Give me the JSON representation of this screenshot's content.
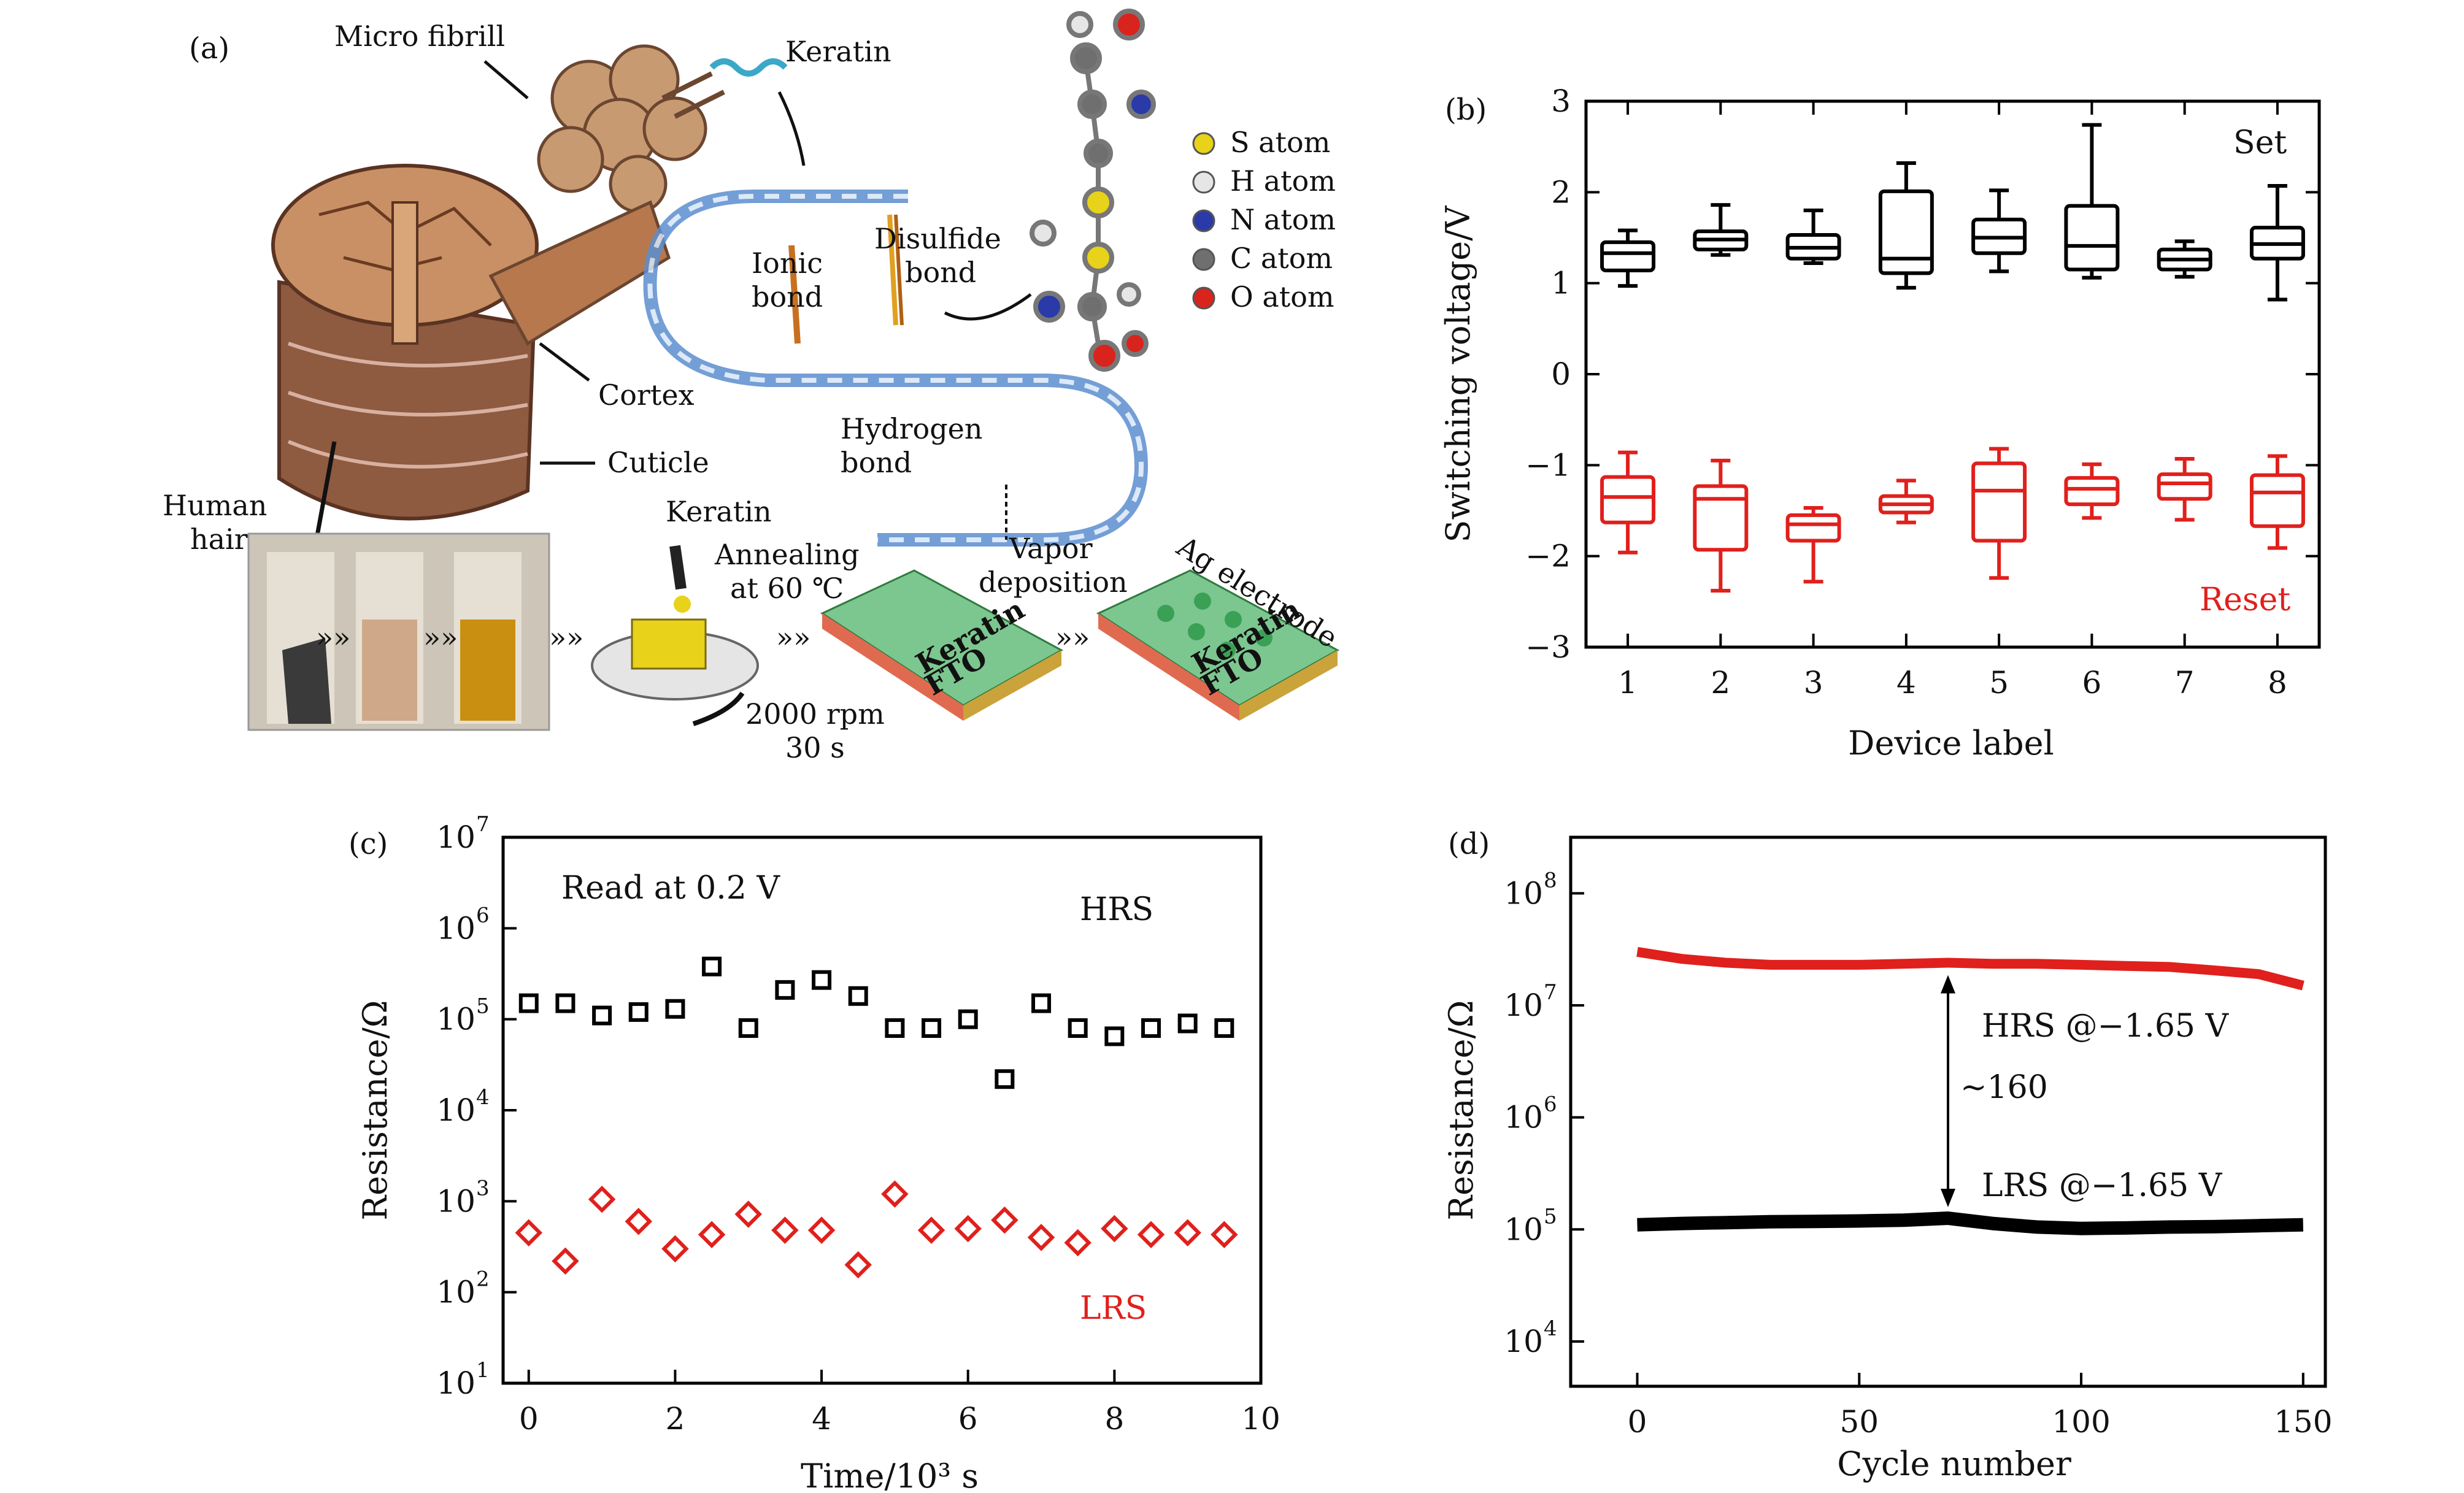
{
  "panels": {
    "a": "(a)",
    "b": "(b)",
    "c": "(c)",
    "d": "(d)"
  },
  "schematic": {
    "labels": {
      "micro_fibril": "Micro fibrill",
      "keratin_top": "Keratin",
      "cortex": "Cortex",
      "cuticle": "Cuticle",
      "human": "Human",
      "hair": "hair",
      "ionic1": "Ionic",
      "ionic2": "bond",
      "disulfide1": "Disulfide",
      "disulfide2": "bond",
      "hydrogen1": "Hydrogen",
      "hydrogen2": "bond",
      "keratin_drop": "Keratin",
      "annealing1": "Annealing",
      "annealing2": "at 60 ℃",
      "vapor1": "Vapor",
      "vapor2": "deposition",
      "ag": "Ag electrode",
      "rpm": "2000 rpm",
      "sec": "30 s",
      "keratin_film": "Keratin",
      "fto": "FTO",
      "keratin_film2": "Keratin",
      "fto2": "FTO"
    },
    "legend": [
      {
        "label": "S atom",
        "color": "#e8d21a"
      },
      {
        "label": "H atom",
        "color": "#e6e6e6"
      },
      {
        "label": "N atom",
        "color": "#2a3aa8"
      },
      {
        "label": "C atom",
        "color": "#6f6f6f"
      },
      {
        "label": "O atom",
        "color": "#d8241c"
      }
    ]
  },
  "chart_data": [
    {
      "id": "b",
      "type": "box",
      "xlabel": "Device label",
      "ylabel": "Switching voltage/V",
      "xlim": [
        0.55,
        8.45
      ],
      "ylim": [
        -3,
        3
      ],
      "categories": [
        "1",
        "2",
        "3",
        "4",
        "5",
        "6",
        "7",
        "8"
      ],
      "yticks": [
        "3",
        "2",
        "1",
        "0",
        "−1",
        "−2",
        "−3"
      ],
      "series": [
        {
          "name": "Set",
          "color": "#000000",
          "boxes": [
            {
              "min": 0.97,
              "q1": 1.14,
              "med": 1.33,
              "q3": 1.45,
              "max": 1.58
            },
            {
              "min": 1.31,
              "q1": 1.37,
              "med": 1.48,
              "q3": 1.57,
              "max": 1.86
            },
            {
              "min": 1.22,
              "q1": 1.27,
              "med": 1.39,
              "q3": 1.53,
              "max": 1.8
            },
            {
              "min": 0.95,
              "q1": 1.11,
              "med": 1.27,
              "q3": 2.01,
              "max": 2.32
            },
            {
              "min": 1.13,
              "q1": 1.33,
              "med": 1.5,
              "q3": 1.7,
              "max": 2.02
            },
            {
              "min": 1.06,
              "q1": 1.15,
              "med": 1.41,
              "q3": 1.85,
              "max": 2.74
            },
            {
              "min": 1.07,
              "q1": 1.15,
              "med": 1.26,
              "q3": 1.37,
              "max": 1.46
            },
            {
              "min": 0.82,
              "q1": 1.27,
              "med": 1.43,
              "q3": 1.61,
              "max": 2.07
            }
          ]
        },
        {
          "name": "Reset",
          "color": "#e0201c",
          "boxes": [
            {
              "min": -1.96,
              "q1": -1.63,
              "med": -1.35,
              "q3": -1.13,
              "max": -0.86
            },
            {
              "min": -2.38,
              "q1": -1.93,
              "med": -1.37,
              "q3": -1.23,
              "max": -0.95
            },
            {
              "min": -2.28,
              "q1": -1.83,
              "med": -1.65,
              "q3": -1.55,
              "max": -1.47
            },
            {
              "min": -1.63,
              "q1": -1.52,
              "med": -1.43,
              "q3": -1.34,
              "max": -1.17
            },
            {
              "min": -2.24,
              "q1": -1.83,
              "med": -1.28,
              "q3": -0.98,
              "max": -0.82
            },
            {
              "min": -1.58,
              "q1": -1.43,
              "med": -1.26,
              "q3": -1.14,
              "max": -0.99
            },
            {
              "min": -1.6,
              "q1": -1.37,
              "med": -1.2,
              "q3": -1.1,
              "max": -0.93
            },
            {
              "min": -1.91,
              "q1": -1.67,
              "med": -1.3,
              "q3": -1.11,
              "max": -0.9
            }
          ]
        }
      ]
    },
    {
      "id": "c",
      "type": "scatter",
      "xlabel": "Time/10³ s",
      "ylabel": "Resistance/Ω",
      "xlim": [
        -0.35,
        10
      ],
      "ylim": [
        1,
        7
      ],
      "yscale": "log",
      "xticks": [
        "0",
        "2",
        "4",
        "6",
        "8",
        "10"
      ],
      "yticks": [
        "10",
        "10",
        "10",
        "10",
        "10",
        "10",
        "10"
      ],
      "yexp": [
        "7",
        "6",
        "5",
        "4",
        "3",
        "2",
        "1"
      ],
      "annotation": "Read at 0.2 V",
      "series": [
        {
          "name": "HRS",
          "color": "#000000",
          "marker": "square",
          "x": [
            0,
            0.5,
            1,
            1.5,
            2,
            2.5,
            3,
            3.5,
            4,
            4.5,
            5,
            5.5,
            6,
            6.5,
            7,
            7.5,
            8,
            8.5,
            9,
            9.5
          ],
          "y": [
            150000,
            150000,
            110000,
            120000,
            130000,
            380000,
            80000,
            210000,
            270000,
            180000,
            80000,
            80000,
            100000,
            22000,
            150000,
            80000,
            65000,
            80000,
            90000,
            80000
          ]
        },
        {
          "name": "LRS",
          "color": "#e0201c",
          "marker": "diamond",
          "x": [
            0,
            0.5,
            1,
            1.5,
            2,
            2.5,
            3,
            3.5,
            4,
            4.5,
            5,
            5.5,
            6,
            6.5,
            7,
            7.5,
            8,
            8.5,
            9,
            9.5
          ],
          "y": [
            450,
            220,
            1050,
            600,
            300,
            430,
            720,
            480,
            480,
            200,
            1200,
            480,
            500,
            620,
            400,
            350,
            500,
            430,
            450,
            430
          ]
        }
      ]
    },
    {
      "id": "d",
      "type": "line",
      "xlabel": "Cycle number",
      "ylabel": "Resistance/Ω",
      "xlim": [
        -15,
        155
      ],
      "ylim": [
        3.6,
        8.5
      ],
      "yscale": "log",
      "xticks": [
        "0",
        "50",
        "100",
        "150"
      ],
      "yticks": [
        "10",
        "10",
        "10",
        "10",
        "10"
      ],
      "yexp": [
        "8",
        "7",
        "6",
        "5",
        "4"
      ],
      "ratio": "~160",
      "series": [
        {
          "name": "HRS @−1.65 V",
          "color": "#e0201c",
          "x": [
            0,
            10,
            20,
            30,
            40,
            50,
            60,
            70,
            80,
            90,
            100,
            110,
            120,
            130,
            140,
            150
          ],
          "y": [
            30000000,
            26000000,
            24000000,
            23000000,
            23000000,
            23000000,
            23500000,
            24000000,
            23500000,
            23500000,
            23000000,
            22500000,
            22000000,
            20500000,
            19000000,
            15000000
          ]
        },
        {
          "name": "LRS @−1.65 V",
          "color": "#000000",
          "x": [
            0,
            10,
            20,
            30,
            40,
            50,
            60,
            70,
            80,
            90,
            100,
            110,
            120,
            130,
            140,
            150
          ],
          "y": [
            110000,
            113000,
            115000,
            117000,
            118000,
            119000,
            121000,
            126000,
            113000,
            105000,
            102000,
            103000,
            105000,
            106000,
            108000,
            110000
          ]
        }
      ]
    }
  ]
}
